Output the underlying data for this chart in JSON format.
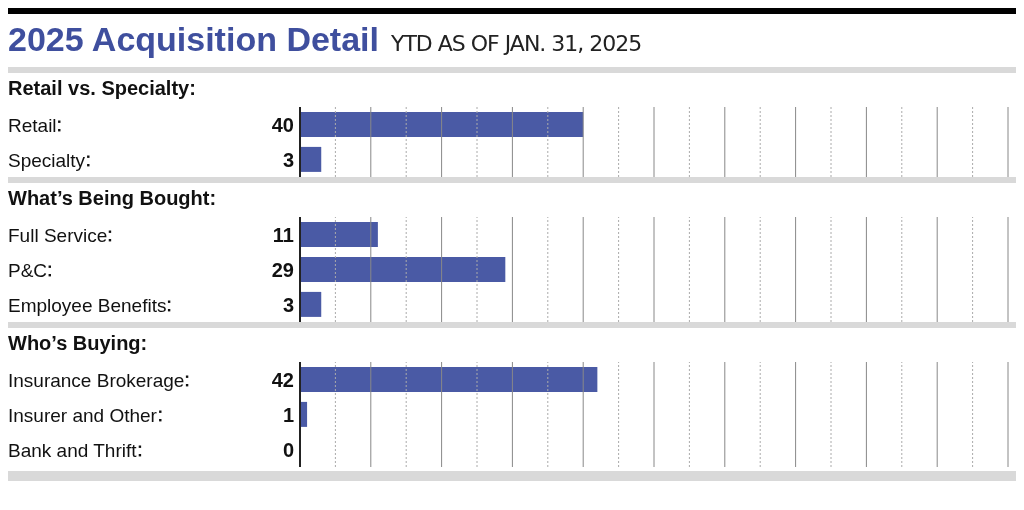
{
  "chart_data": [
    {
      "type": "bar",
      "orientation": "horizontal",
      "title": "2025 Acquisition Detail",
      "subtitle": "YTD AS OF JAN. 31, 2025",
      "ylabel": "Retail vs. Specialty:",
      "categories": [
        "Retail",
        "Specialty"
      ],
      "values": [
        40,
        3
      ],
      "color": "#4a5aa5",
      "data_labels": true,
      "grid": "x",
      "tick_labels": "y",
      "xlim": [
        0,
        100
      ],
      "xticks": [
        {
          "value": 0,
          "label": null
        },
        {
          "value": 5,
          "label": null
        },
        {
          "value": 10,
          "label": null
        },
        {
          "value": 15,
          "label": null
        },
        {
          "value": 20,
          "label": null
        },
        {
          "value": 25,
          "label": null
        },
        {
          "value": 30,
          "label": null
        },
        {
          "value": 35,
          "label": null
        },
        {
          "value": 40,
          "label": null
        },
        {
          "value": 45,
          "label": null
        },
        {
          "value": 50,
          "label": null
        },
        {
          "value": 55,
          "label": null
        },
        {
          "value": 60,
          "label": null
        },
        {
          "value": 65,
          "label": null
        },
        {
          "value": 70,
          "label": null
        },
        {
          "value": 75,
          "label": null
        },
        {
          "value": 80,
          "label": null
        },
        {
          "value": 85,
          "label": null
        },
        {
          "value": 90,
          "label": null
        },
        {
          "value": 95,
          "label": null
        },
        {
          "value": 100,
          "label": null
        }
      ]
    },
    {
      "type": "bar",
      "orientation": "horizontal",
      "ylabel": "What’s Being Bought:",
      "categories": [
        "Full Service",
        "P&C",
        "Employee Benefits"
      ],
      "values": [
        11,
        29,
        3
      ],
      "color": "#4a5aa5",
      "data_labels": true,
      "grid": "x",
      "tick_labels": "y",
      "xlim": [
        0,
        100
      ],
      "xticks": [
        {
          "value": 0,
          "label": null
        },
        {
          "value": 5,
          "label": null
        },
        {
          "value": 10,
          "label": null
        },
        {
          "value": 15,
          "label": null
        },
        {
          "value": 20,
          "label": null
        },
        {
          "value": 25,
          "label": null
        },
        {
          "value": 30,
          "label": null
        },
        {
          "value": 35,
          "label": null
        },
        {
          "value": 40,
          "label": null
        },
        {
          "value": 45,
          "label": null
        },
        {
          "value": 50,
          "label": null
        },
        {
          "value": 55,
          "label": null
        },
        {
          "value": 60,
          "label": null
        },
        {
          "value": 65,
          "label": null
        },
        {
          "value": 70,
          "label": null
        },
        {
          "value": 75,
          "label": null
        },
        {
          "value": 80,
          "label": null
        },
        {
          "value": 85,
          "label": null
        },
        {
          "value": 90,
          "label": null
        },
        {
          "value": 95,
          "label": null
        },
        {
          "value": 100,
          "label": null
        }
      ]
    },
    {
      "type": "bar",
      "orientation": "horizontal",
      "ylabel": "Who’s Buying:",
      "categories": [
        "Insurance Brokerage",
        "Insurer and Other",
        "Bank and Thrift"
      ],
      "values": [
        42,
        1,
        0
      ],
      "color": "#4a5aa5",
      "data_labels": true,
      "grid": "x",
      "tick_labels": "y",
      "xlim": [
        0,
        100
      ],
      "xticks": [
        {
          "value": 0,
          "label": null
        },
        {
          "value": 5,
          "label": null
        },
        {
          "value": 10,
          "label": null
        },
        {
          "value": 15,
          "label": null
        },
        {
          "value": 20,
          "label": null
        },
        {
          "value": 25,
          "label": null
        },
        {
          "value": 30,
          "label": null
        },
        {
          "value": 35,
          "label": null
        },
        {
          "value": 40,
          "label": null
        },
        {
          "value": 45,
          "label": null
        },
        {
          "value": 50,
          "label": null
        },
        {
          "value": 55,
          "label": null
        },
        {
          "value": 60,
          "label": null
        },
        {
          "value": 65,
          "label": null
        },
        {
          "value": 70,
          "label": null
        },
        {
          "value": 75,
          "label": null
        },
        {
          "value": 80,
          "label": null
        },
        {
          "value": 85,
          "label": null
        },
        {
          "value": 90,
          "label": null
        },
        {
          "value": 95,
          "label": null
        },
        {
          "value": 100,
          "label": null
        }
      ]
    }
  ]
}
